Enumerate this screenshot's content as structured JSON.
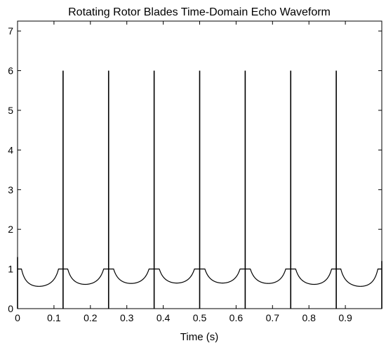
{
  "chart_data": {
    "type": "line",
    "title": "Rotating Rotor Blades Time-Domain Echo Waveform",
    "xlabel": "Time (s)",
    "ylabel": "",
    "xlim": [
      0,
      1
    ],
    "ylim": [
      0,
      7.25
    ],
    "grid": false,
    "legend": "none",
    "line_color": "#000000",
    "x_ticks": [
      0,
      0.1,
      0.2,
      0.3,
      0.4,
      0.5,
      0.6,
      0.7,
      0.8,
      0.9
    ],
    "x_tick_labels": [
      "0",
      "0.1",
      "0.2",
      "0.3",
      "0.4",
      "0.5",
      "0.6",
      "0.7",
      "0.8",
      "0.9"
    ],
    "y_ticks": [
      0,
      1,
      2,
      3,
      4,
      5,
      6,
      7
    ],
    "y_tick_labels": [
      "0",
      "1",
      "2",
      "3",
      "4",
      "5",
      "6",
      "7"
    ],
    "series": [
      {
        "values": [
          {
            "x": 0.0,
            "y": 1.3
          },
          {
            "x": 0.125,
            "y": 6.0
          },
          {
            "x": 0.25,
            "y": 6.0
          },
          {
            "x": 0.375,
            "y": 6.0
          },
          {
            "x": 0.5,
            "y": 6.0
          },
          {
            "x": 0.625,
            "y": 6.0
          },
          {
            "x": 0.75,
            "y": 6.0
          },
          {
            "x": 0.875,
            "y": 6.0
          },
          {
            "x": 1.0,
            "y": 1.2
          }
        ]
      }
    ]
  }
}
